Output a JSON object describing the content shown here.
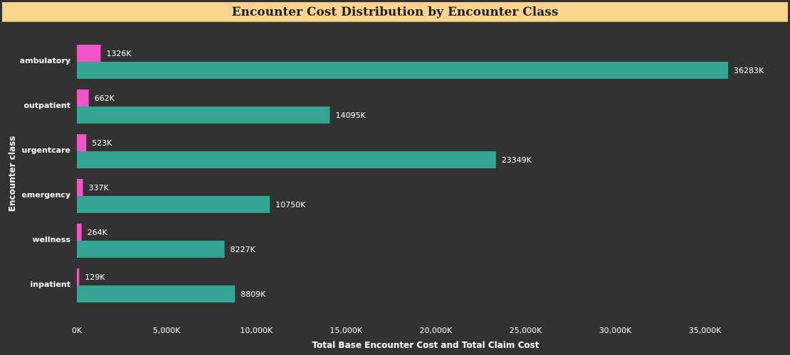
{
  "chart_data": {
    "type": "bar",
    "orientation": "horizontal",
    "title": "Encounter Cost Distribution by Encounter Class",
    "xlabel": "Total Base Encounter Cost and Total Claim Cost",
    "ylabel": "Encounter class",
    "categories": [
      "ambulatory",
      "outpatient",
      "urgentcare",
      "emergency",
      "wellness",
      "inpatient"
    ],
    "series": [
      {
        "key": "claim",
        "color": "#f255c8",
        "values": [
          1326,
          662,
          523,
          337,
          264,
          129
        ],
        "labels": [
          "1326K",
          "662K",
          "523K",
          "337K",
          "264K",
          "129K"
        ]
      },
      {
        "key": "base",
        "color": "#34a592",
        "values": [
          36283,
          14095,
          23349,
          10750,
          8227,
          8809
        ],
        "labels": [
          "36283K",
          "14095K",
          "23349K",
          "10750K",
          "8227K",
          "8809K"
        ]
      }
    ],
    "xlim": [
      0,
      37000
    ],
    "xticks": [
      0,
      5000,
      10000,
      15000,
      20000,
      25000,
      30000,
      35000
    ],
    "xtick_labels": [
      "0K",
      "5,000K",
      "10,000K",
      "15,000K",
      "20,000K",
      "25,000K",
      "30,000K",
      "35,000K"
    ],
    "grid": false,
    "legend": "none"
  },
  "colors": {
    "background": "#323232",
    "title_bar": "#f9d48c",
    "text": "#ffffff"
  }
}
